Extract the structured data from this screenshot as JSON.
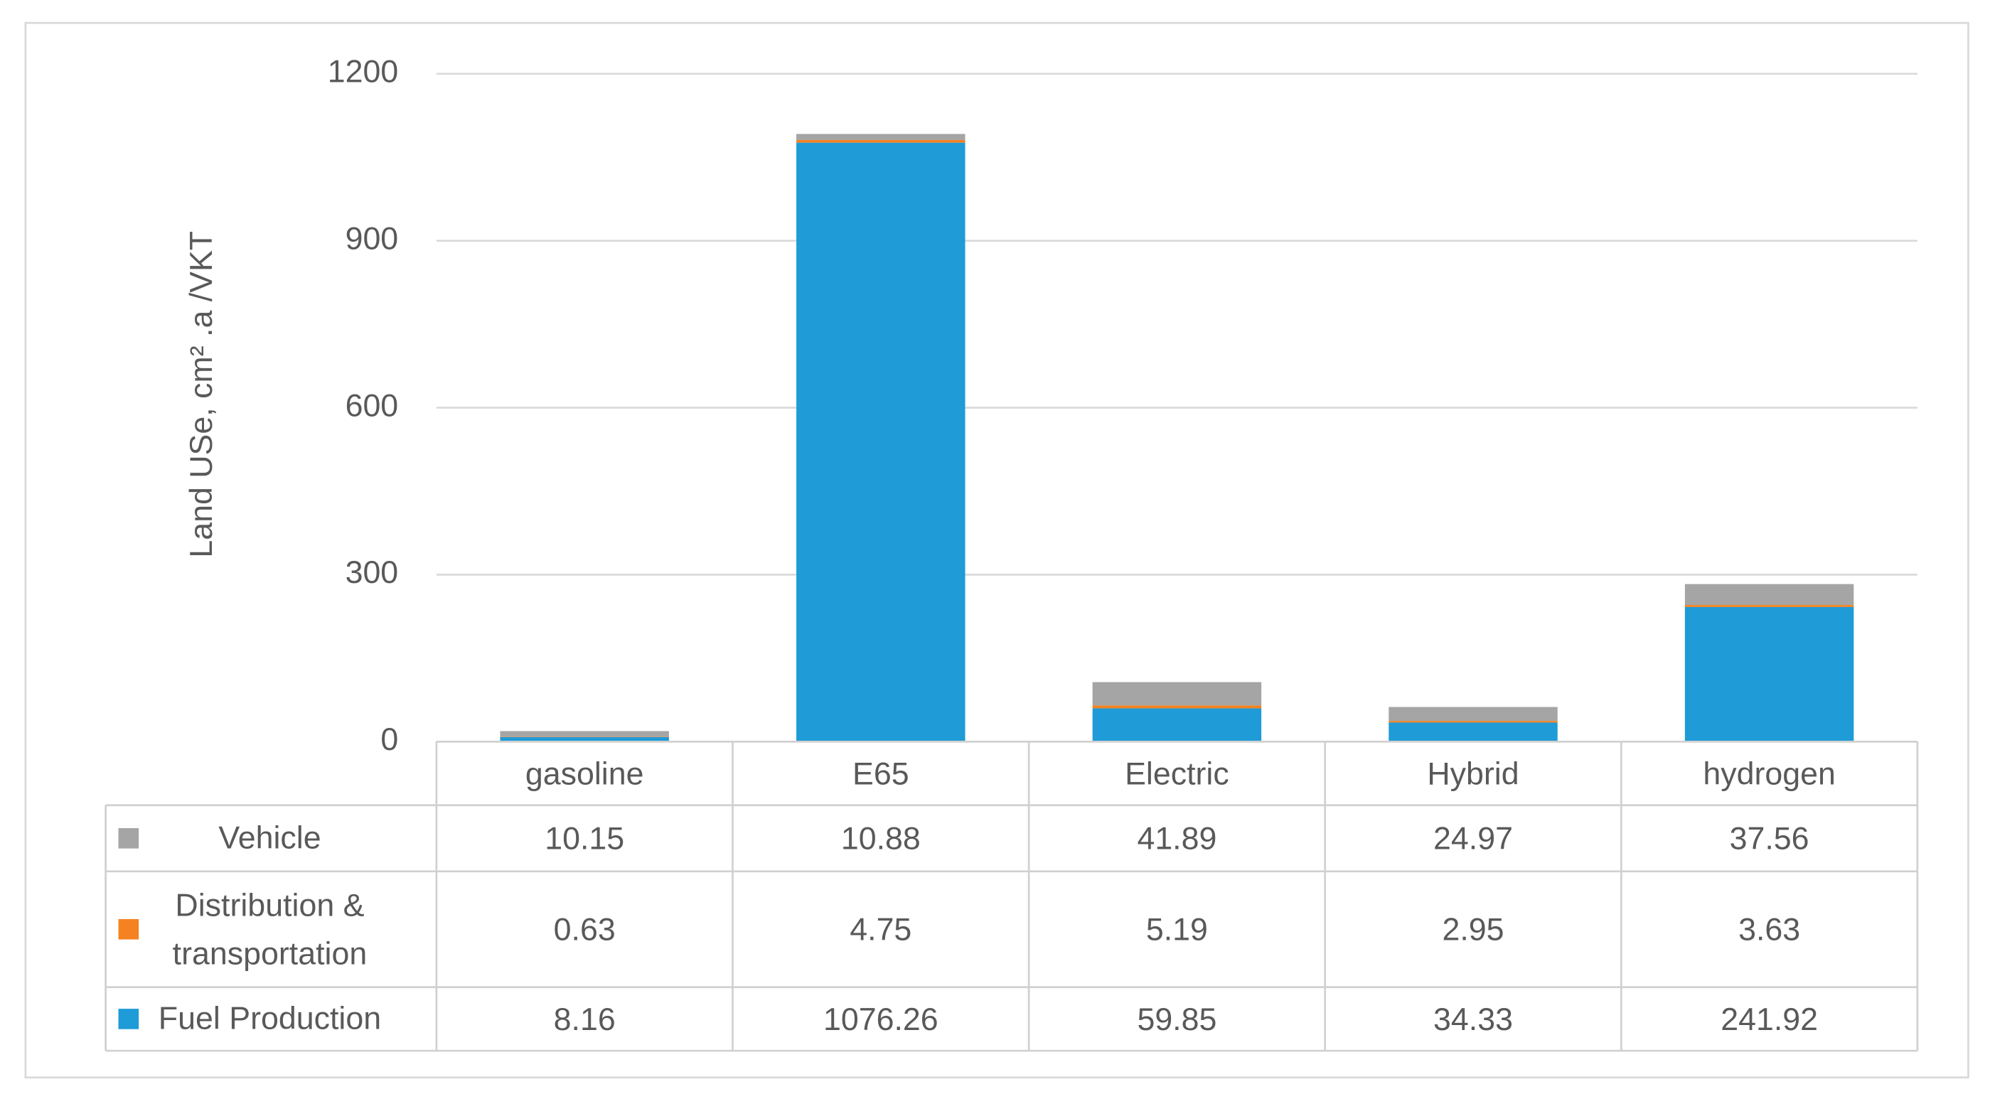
{
  "chart_data": {
    "type": "stacked-bar",
    "y_label": "Land USe, cm² .a /VKT",
    "categories": [
      "gasoline",
      "E65",
      "Electric",
      "Hybrid",
      "hydrogen"
    ],
    "series": [
      {
        "name": "Fuel Production",
        "color": "#1f9bd7",
        "values": [
          8.16,
          1076.26,
          59.85,
          34.33,
          241.92
        ]
      },
      {
        "name": "Distribution & transportation",
        "color": "#f58220",
        "values": [
          0.63,
          4.75,
          5.19,
          2.95,
          3.63
        ]
      },
      {
        "name": "Vehicle",
        "color": "#a5a5a5",
        "values": [
          10.15,
          10.88,
          41.89,
          24.97,
          37.56
        ]
      }
    ],
    "ylim": [
      0,
      1200
    ],
    "yticks": [
      0,
      300,
      600,
      900,
      1200
    ],
    "grid": true
  }
}
